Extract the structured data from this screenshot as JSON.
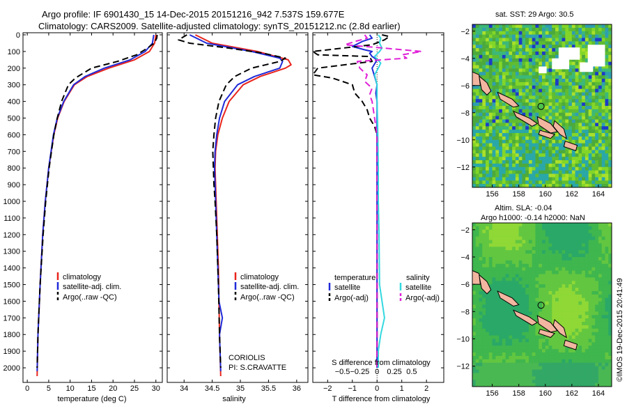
{
  "title_line1": "Argo profile: IF 6901430_15 14-Dec-2015 20151216_942 7.537S 159.677E",
  "title_line2": "Climatology: CARS2009. Satellite-adjusted climatology: synTS_20151212.nc (2.8d earlier)",
  "colors": {
    "climatology": "#e8241c",
    "satellite": "#1f2ad8",
    "argo": "#000000",
    "sal_satellite": "#33d8e0",
    "sal_argo": "#e020d8"
  },
  "legend": {
    "climatology": "climatology",
    "satellite": "satellite-adj. clim.",
    "argo": "Argo(..raw -QC)",
    "diff_temperature": "temperature",
    "diff_salinity": "salinity",
    "diff_satellite": "satellite",
    "diff_argo": "Argo(-adj)"
  },
  "notes": {
    "source": "CORIOLIS",
    "pi": "PI: S.CRAVATTE"
  },
  "map_titles": {
    "sst": "sat. SST: 29 Argo: 30.5",
    "sla1": "Altim. SLA: -0.04",
    "sla2": "Argo h1000: -0.14 h2000: NaN"
  },
  "credit": "©IMOS 19-Dec-2015 20:41:49",
  "chart_data": [
    {
      "type": "line",
      "xlabel": "temperature (deg C)",
      "ylabel": "",
      "xlim": [
        -1,
        31.5
      ],
      "ylim": [
        2050,
        0
      ],
      "xticks": [
        0,
        5,
        10,
        15,
        20,
        25,
        30
      ],
      "yticks": [
        0,
        100,
        200,
        300,
        400,
        500,
        600,
        700,
        800,
        900,
        1000,
        1100,
        1200,
        1300,
        1400,
        1500,
        1600,
        1700,
        1800,
        1900,
        2000
      ],
      "series": [
        {
          "name": "climatology",
          "color": "#e8241c",
          "dash": "",
          "depth": [
            0,
            50,
            100,
            150,
            200,
            250,
            300,
            400,
            500,
            600,
            800,
            1000,
            1200,
            1500,
            1800,
            2050
          ],
          "values": [
            30.0,
            29.7,
            28.5,
            25.0,
            19.0,
            14.0,
            11.0,
            8.6,
            7.1,
            6.2,
            5.0,
            4.2,
            3.6,
            3.0,
            2.5,
            2.3
          ]
        },
        {
          "name": "satellite-adj. clim.",
          "color": "#1f2ad8",
          "dash": "",
          "depth": [
            0,
            50,
            100,
            150,
            200,
            250,
            300,
            400,
            500,
            600,
            800,
            1000,
            1200,
            1500,
            1800,
            2020
          ],
          "values": [
            29.5,
            29.2,
            27.5,
            24.0,
            18.0,
            13.5,
            10.8,
            8.5,
            7.0,
            6.1,
            5.0,
            4.2,
            3.6,
            3.0,
            2.5,
            2.3
          ]
        },
        {
          "name": "Argo(..raw -QC)",
          "color": "#000000",
          "dash": "9,5",
          "depth": [
            0,
            20,
            50,
            80,
            120,
            160,
            200,
            260,
            300,
            400,
            500,
            600,
            800,
            1000,
            1200,
            1500,
            1800,
            2000
          ],
          "values": [
            30.3,
            30.2,
            29.6,
            28.0,
            25.5,
            21.0,
            15.0,
            11.2,
            9.6,
            8.0,
            7.0,
            6.2,
            5.1,
            4.3,
            3.7,
            3.0,
            2.5,
            2.3
          ]
        }
      ]
    },
    {
      "type": "line",
      "xlabel": "salinity",
      "ylabel": "",
      "xlim": [
        33.7,
        36.2
      ],
      "ylim": [
        2050,
        0
      ],
      "xticks": [
        34,
        34.5,
        35,
        35.5,
        36
      ],
      "series": [
        {
          "name": "climatology",
          "color": "#e8241c",
          "dash": "",
          "depth": [
            0,
            50,
            100,
            150,
            180,
            200,
            250,
            300,
            400,
            500,
            600,
            700,
            800,
            900,
            1000,
            1200,
            1400,
            1600,
            1800,
            2050
          ],
          "values": [
            34.2,
            34.5,
            35.3,
            35.85,
            35.9,
            35.8,
            35.35,
            35.05,
            34.8,
            34.68,
            34.6,
            34.56,
            34.55,
            34.56,
            34.57,
            34.59,
            34.61,
            34.62,
            34.63,
            34.65
          ]
        },
        {
          "name": "satellite-adj. clim.",
          "color": "#1f2ad8",
          "dash": "",
          "depth": [
            0,
            50,
            100,
            140,
            160,
            200,
            250,
            300,
            400,
            500,
            600,
            700,
            800,
            900,
            1000,
            1200,
            1400,
            1600,
            1700,
            1800,
            2020
          ],
          "values": [
            34.1,
            34.4,
            35.2,
            35.7,
            35.75,
            35.7,
            35.25,
            34.95,
            34.72,
            34.63,
            34.58,
            34.55,
            34.54,
            34.55,
            34.56,
            34.58,
            34.6,
            34.62,
            34.68,
            34.63,
            34.65
          ]
        },
        {
          "name": "Argo(..raw -QC)",
          "color": "#000000",
          "dash": "9,5",
          "depth": [
            0,
            30,
            50,
            80,
            110,
            140,
            160,
            200,
            250,
            300,
            400,
            500,
            600,
            700,
            800,
            900,
            1000,
            1200,
            1500,
            1800,
            2000
          ],
          "values": [
            34.05,
            33.9,
            34.1,
            34.8,
            35.4,
            35.8,
            35.7,
            35.2,
            34.9,
            34.75,
            34.62,
            34.56,
            34.53,
            34.51,
            34.52,
            34.53,
            34.55,
            34.58,
            34.61,
            34.63,
            34.65
          ]
        }
      ]
    },
    {
      "type": "line",
      "xlabel": "T difference from climatology",
      "xlabel_top": "S difference from climatology",
      "ylabel": "",
      "xlim": [
        -2.6,
        2.7
      ],
      "ylim": [
        2050,
        0
      ],
      "xticks": [
        -2,
        -1,
        0,
        1,
        2
      ],
      "xticks_top": [
        -0.5,
        -0.25,
        0,
        0.25,
        0.5
      ],
      "series": [
        {
          "name": "temperature satellite",
          "color": "#1f2ad8",
          "dash": "",
          "depth": [
            0,
            20,
            40,
            70,
            90,
            100,
            110,
            130,
            150,
            200,
            250,
            300,
            350,
            400,
            500,
            600,
            800,
            1000,
            1200,
            1500,
            1800,
            2000
          ],
          "values": [
            -0.3,
            -0.2,
            -0.6,
            -1.0,
            -0.5,
            -0.2,
            -0.3,
            -0.2,
            0.0,
            -0.2,
            -0.1,
            0.0,
            -0.05,
            0.0,
            0.0,
            0.0,
            0.0,
            0.0,
            0.0,
            0.0,
            0.0,
            0.0
          ]
        },
        {
          "name": "temperature Argo(-adj)",
          "color": "#000000",
          "dash": "9,5",
          "depth": [
            0,
            10,
            30,
            60,
            100,
            120,
            130,
            160,
            200,
            240,
            260,
            300,
            350,
            400,
            450,
            500,
            550,
            600,
            800,
            1000,
            1200,
            1500,
            1800,
            2000
          ],
          "values": [
            0.2,
            0.5,
            0.3,
            -0.2,
            -2.6,
            -2.4,
            -0.3,
            -0.2,
            -2.4,
            -2.6,
            -1.8,
            -1.0,
            -0.9,
            -0.6,
            -0.4,
            -0.3,
            -0.1,
            0.0,
            0.0,
            0.0,
            0.0,
            0.0,
            0.0,
            0.0
          ]
        },
        {
          "name": "salinity satellite",
          "color": "#33d8e0",
          "dash": "",
          "depth": [
            0,
            20,
            50,
            80,
            100,
            130,
            170,
            200,
            240,
            300,
            400,
            500,
            600,
            800,
            1000,
            1200,
            1500,
            1700,
            1800,
            1900,
            2000
          ],
          "values": [
            0.05,
            0.15,
            0.1,
            0.2,
            0.1,
            -0.1,
            0.15,
            0.05,
            -0.1,
            0.0,
            0.0,
            0.02,
            0.03,
            0.05,
            0.05,
            0.08,
            0.1,
            0.3,
            0.15,
            0.05,
            0.05
          ]
        },
        {
          "name": "salinity Argo(-adj)",
          "color": "#e020d8",
          "dash": "9,5",
          "depth": [
            0,
            20,
            40,
            60,
            80,
            100,
            120,
            140,
            160,
            200,
            240,
            280,
            320,
            360,
            400,
            500,
            600,
            800,
            1000,
            1200,
            1500,
            1800,
            2000
          ],
          "values": [
            -0.5,
            -0.4,
            -0.9,
            -1.3,
            0.3,
            1.8,
            1.0,
            1.2,
            -0.8,
            -0.7,
            -0.4,
            -0.5,
            -0.2,
            -0.3,
            -0.2,
            -0.1,
            0.0,
            0.0,
            0.0,
            0.0,
            0.0,
            0.0,
            0.0
          ]
        }
      ]
    },
    {
      "type": "heatmap",
      "title": "sat. SST: 29 Argo: 30.5",
      "xlim": [
        154.5,
        165
      ],
      "ylim": [
        -13.5,
        -1.5
      ],
      "xticks": [
        156,
        158,
        160,
        162,
        164
      ],
      "yticks": [
        -2,
        -4,
        -6,
        -8,
        -10,
        -12
      ],
      "argo_position": [
        159.677,
        -7.537
      ]
    },
    {
      "type": "heatmap",
      "title": "Altim. SLA: -0.04",
      "xlim": [
        154.5,
        165
      ],
      "ylim": [
        -13.5,
        -1.5
      ],
      "xticks": [
        156,
        158,
        160,
        162,
        164
      ],
      "yticks": [
        -2,
        -4,
        -6,
        -8,
        -10,
        -12
      ],
      "argo_position": [
        159.677,
        -7.537
      ]
    }
  ]
}
